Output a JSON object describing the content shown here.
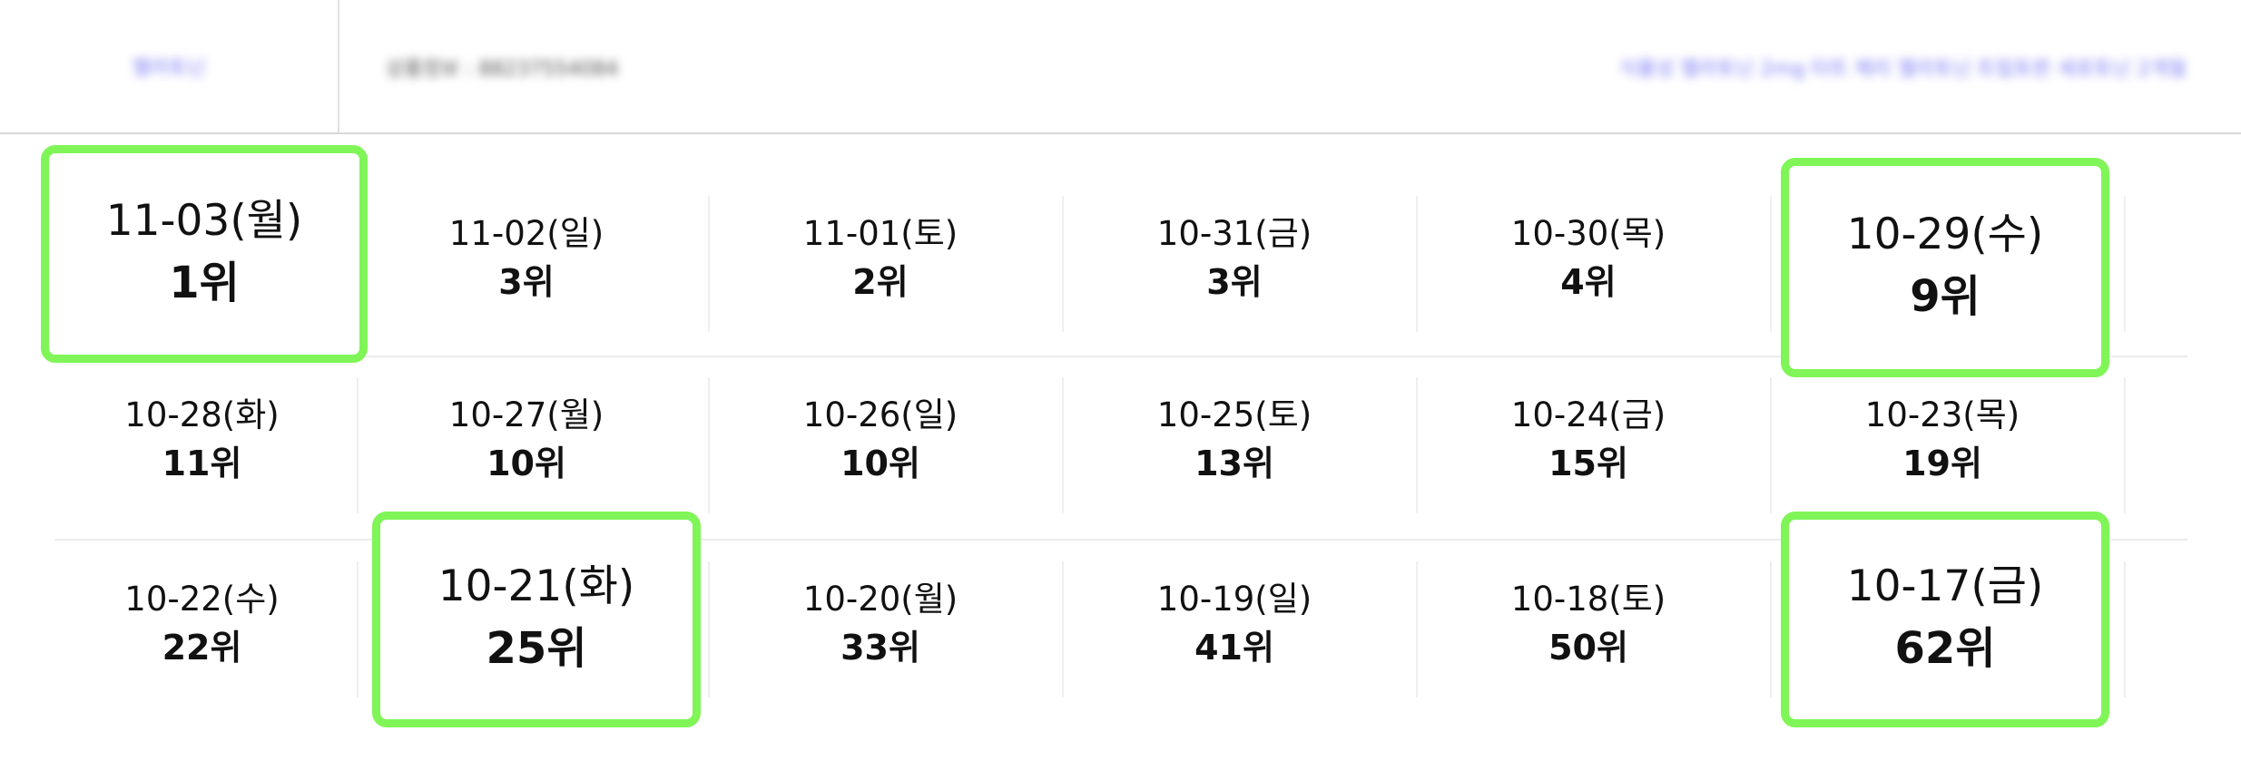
{
  "header": {
    "category": "멜라토닌",
    "product_info": "상품정보 : 88237554084",
    "product_title": "식물성 멜라토닌 2mg 타트 체리 멜라토닌 트립토판 세로토닌 2개월"
  },
  "accent_color": "#80f558",
  "rankings": [
    {
      "date": "11-03(월)",
      "rank": "1위",
      "highlight": true
    },
    {
      "date": "11-02(일)",
      "rank": "3위",
      "highlight": false
    },
    {
      "date": "11-01(토)",
      "rank": "2위",
      "highlight": false
    },
    {
      "date": "10-31(금)",
      "rank": "3위",
      "highlight": false
    },
    {
      "date": "10-30(목)",
      "rank": "4위",
      "highlight": false
    },
    {
      "date": "10-29(수)",
      "rank": "9위",
      "highlight": true
    },
    {
      "date": "10-28(화)",
      "rank": "11위",
      "highlight": false
    },
    {
      "date": "10-27(월)",
      "rank": "10위",
      "highlight": false
    },
    {
      "date": "10-26(일)",
      "rank": "10위",
      "highlight": false
    },
    {
      "date": "10-25(토)",
      "rank": "13위",
      "highlight": false
    },
    {
      "date": "10-24(금)",
      "rank": "15위",
      "highlight": false
    },
    {
      "date": "10-23(목)",
      "rank": "19위",
      "highlight": false
    },
    {
      "date": "10-22(수)",
      "rank": "22위",
      "highlight": false
    },
    {
      "date": "10-21(화)",
      "rank": "25위",
      "highlight": true
    },
    {
      "date": "10-20(월)",
      "rank": "33위",
      "highlight": false
    },
    {
      "date": "10-19(일)",
      "rank": "41위",
      "highlight": false
    },
    {
      "date": "10-18(토)",
      "rank": "50위",
      "highlight": false
    },
    {
      "date": "10-17(금)",
      "rank": "62위",
      "highlight": true
    }
  ]
}
